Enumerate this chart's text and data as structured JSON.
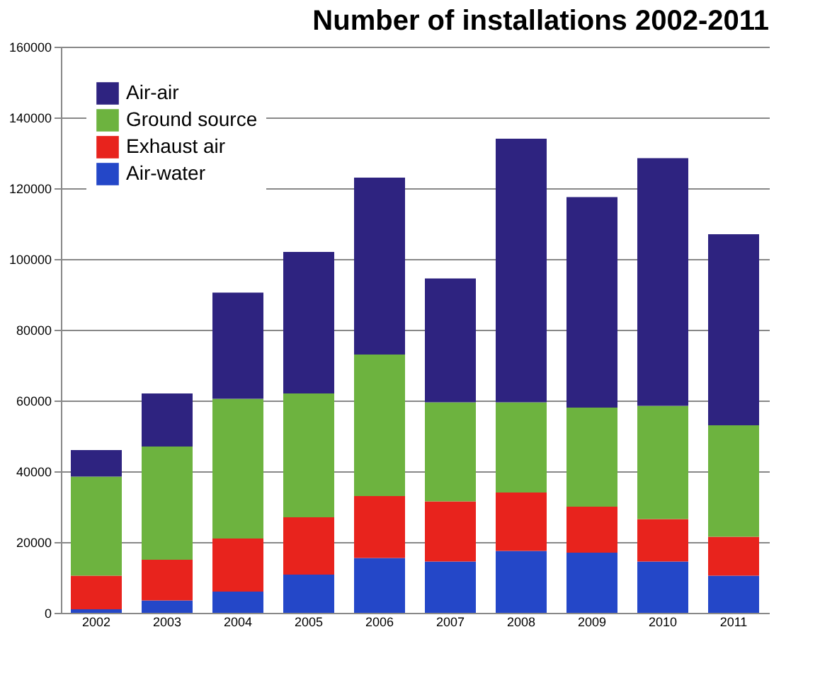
{
  "chart_data": {
    "type": "bar",
    "stacked": true,
    "title": "Number of installations 2002-2011",
    "categories": [
      "2002",
      "2003",
      "2004",
      "2005",
      "2006",
      "2007",
      "2008",
      "2009",
      "2010",
      "2011"
    ],
    "series": [
      {
        "name": "Air-water",
        "color": "#2447c8",
        "values": [
          1000,
          3500,
          6000,
          10800,
          15500,
          14500,
          17500,
          17000,
          14500,
          10500
        ]
      },
      {
        "name": "Exhaust air",
        "color": "#e8231d",
        "values": [
          9500,
          11500,
          15000,
          16200,
          17500,
          17000,
          16500,
          13000,
          12000,
          11000
        ]
      },
      {
        "name": "Ground source",
        "color": "#6db33f",
        "values": [
          28000,
          32000,
          39500,
          35000,
          40000,
          28000,
          25500,
          28000,
          32000,
          31500
        ]
      },
      {
        "name": "Air-air",
        "color": "#2e2380",
        "values": [
          7500,
          15000,
          30000,
          40000,
          50000,
          35000,
          74500,
          59500,
          70000,
          54000
        ]
      }
    ],
    "ylim": [
      0,
      160000
    ],
    "yticks": [
      0,
      20000,
      40000,
      60000,
      80000,
      100000,
      120000,
      140000,
      160000
    ],
    "grid": "y",
    "legend": "top left"
  }
}
